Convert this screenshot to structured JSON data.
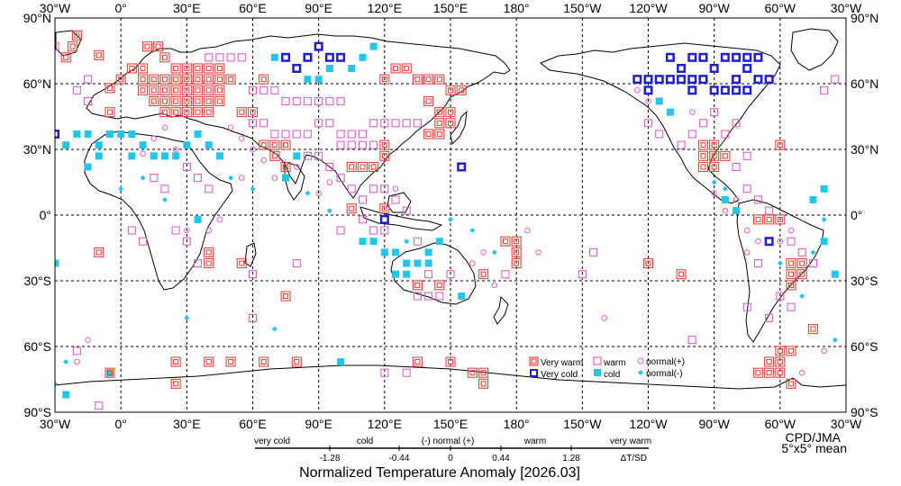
{
  "map": {
    "lon_labels_top": [
      "30°W",
      "0°",
      "30°E",
      "60°E",
      "90°E",
      "120°E",
      "150°E",
      "180°",
      "150°W",
      "120°W",
      "90°W",
      "60°W",
      "30°W"
    ],
    "lon_labels_bottom": [
      "30°W",
      "0°",
      "30°E",
      "60°E",
      "90°E",
      "120°E",
      "150°E",
      "180°",
      "150°W",
      "120°W",
      "90°W",
      "60°W",
      "30°W"
    ],
    "lat_labels": [
      "90°N",
      "60°N",
      "30°N",
      "0°",
      "30°S",
      "60°S",
      "90°S"
    ],
    "credit": "CPD/JMA",
    "grid_note": "5°x5° mean"
  },
  "legend": {
    "very_warm": "Very warm",
    "warm": "warm",
    "normal_plus": "normal(+)",
    "very_cold": "Very cold",
    "cold": "cold",
    "normal_minus": "normal(-)"
  },
  "scale": {
    "categories": [
      "very cold",
      "cold",
      "(-) normal (+)",
      "warm",
      "very warm"
    ],
    "ticks": [
      "-1.28",
      "-0.44",
      "0",
      "0.44",
      "1.28"
    ],
    "unit": "ΔT/SD",
    "title": "Normalized Temperature Anomaly [2026.03]"
  },
  "colors": {
    "very_warm": "#e8453c",
    "warm": "#e060c8",
    "very_cold": "#1f1fd0",
    "cold": "#22c6e8"
  },
  "stations": {
    "very_warm": [
      [
        -20,
        82
      ],
      [
        -22,
        77
      ],
      [
        -25,
        72
      ],
      [
        -10,
        73
      ],
      [
        -5,
        58
      ],
      [
        0,
        62
      ],
      [
        5,
        67
      ],
      [
        10,
        67
      ],
      [
        12,
        77
      ],
      [
        17,
        77
      ],
      [
        20,
        72
      ],
      [
        25,
        67
      ],
      [
        30,
        67
      ],
      [
        35,
        67
      ],
      [
        40,
        67
      ],
      [
        45,
        67
      ],
      [
        10,
        62
      ],
      [
        15,
        62
      ],
      [
        20,
        62
      ],
      [
        25,
        62
      ],
      [
        30,
        62
      ],
      [
        35,
        62
      ],
      [
        40,
        62
      ],
      [
        45,
        62
      ],
      [
        50,
        62
      ],
      [
        10,
        57
      ],
      [
        15,
        57
      ],
      [
        20,
        57
      ],
      [
        25,
        57
      ],
      [
        30,
        57
      ],
      [
        35,
        57
      ],
      [
        40,
        57
      ],
      [
        45,
        57
      ],
      [
        15,
        52
      ],
      [
        20,
        52
      ],
      [
        25,
        52
      ],
      [
        30,
        52
      ],
      [
        35,
        52
      ],
      [
        40,
        52
      ],
      [
        45,
        52
      ],
      [
        -5,
        47
      ],
      [
        20,
        47
      ],
      [
        25,
        47
      ],
      [
        30,
        47
      ],
      [
        35,
        47
      ],
      [
        40,
        47
      ],
      [
        55,
        47
      ],
      [
        60,
        47
      ],
      [
        65,
        62
      ],
      [
        120,
        62
      ],
      [
        125,
        67
      ],
      [
        130,
        67
      ],
      [
        135,
        62
      ],
      [
        140,
        62
      ],
      [
        145,
        62
      ],
      [
        150,
        57
      ],
      [
        155,
        57
      ],
      [
        140,
        52
      ],
      [
        145,
        47
      ],
      [
        150,
        47
      ],
      [
        145,
        42
      ],
      [
        150,
        42
      ],
      [
        140,
        37
      ],
      [
        145,
        37
      ],
      [
        65,
        32
      ],
      [
        70,
        32
      ],
      [
        75,
        32
      ],
      [
        70,
        27
      ],
      [
        75,
        22
      ],
      [
        105,
        22
      ],
      [
        110,
        22
      ],
      [
        115,
        22
      ],
      [
        120,
        27
      ],
      [
        120,
        32
      ],
      [
        105,
        3
      ],
      [
        120,
        3
      ],
      [
        -10,
        -17
      ],
      [
        40,
        -17
      ],
      [
        40,
        -22
      ],
      [
        55,
        -22
      ],
      [
        75,
        -37
      ],
      [
        175,
        -12
      ],
      [
        180,
        -12
      ],
      [
        180,
        -17
      ],
      [
        180,
        -22
      ],
      [
        165,
        -27
      ],
      [
        145,
        -32
      ],
      [
        135,
        -32
      ],
      [
        -120,
        -22
      ],
      [
        -105,
        -27
      ],
      [
        -95,
        32
      ],
      [
        -90,
        32
      ],
      [
        -95,
        27
      ],
      [
        -90,
        27
      ],
      [
        -85,
        27
      ],
      [
        -95,
        22
      ],
      [
        -90,
        22
      ],
      [
        -60,
        32
      ],
      [
        -70,
        -2
      ],
      [
        -65,
        -2
      ],
      [
        -60,
        -2
      ],
      [
        -55,
        -22
      ],
      [
        -50,
        -22
      ],
      [
        -55,
        -27
      ],
      [
        -50,
        -27
      ],
      [
        -55,
        -32
      ],
      [
        -45,
        -52
      ],
      [
        -60,
        -62
      ],
      [
        -55,
        -62
      ],
      [
        -60,
        -67
      ],
      [
        -65,
        -67
      ],
      [
        -60,
        -72
      ],
      [
        -65,
        -72
      ],
      [
        -70,
        -72
      ],
      [
        -55,
        -77
      ],
      [
        -5,
        -72
      ],
      [
        25,
        -67
      ],
      [
        25,
        -77
      ],
      [
        40,
        -67
      ],
      [
        50,
        -67
      ],
      [
        65,
        -67
      ],
      [
        80,
        -67
      ],
      [
        135,
        -67
      ],
      [
        150,
        -67
      ],
      [
        160,
        -72
      ],
      [
        165,
        -72
      ],
      [
        165,
        -77
      ]
    ],
    "warm": [
      [
        40,
        72
      ],
      [
        45,
        72
      ],
      [
        50,
        72
      ],
      [
        55,
        72
      ],
      [
        60,
        57
      ],
      [
        65,
        57
      ],
      [
        70,
        57
      ],
      [
        75,
        52
      ],
      [
        80,
        52
      ],
      [
        85,
        52
      ],
      [
        90,
        52
      ],
      [
        95,
        52
      ],
      [
        100,
        52
      ],
      [
        60,
        42
      ],
      [
        65,
        42
      ],
      [
        70,
        37
      ],
      [
        75,
        37
      ],
      [
        80,
        37
      ],
      [
        85,
        37
      ],
      [
        90,
        42
      ],
      [
        95,
        42
      ],
      [
        100,
        37
      ],
      [
        105,
        37
      ],
      [
        110,
        37
      ],
      [
        115,
        42
      ],
      [
        120,
        42
      ],
      [
        125,
        42
      ],
      [
        130,
        42
      ],
      [
        135,
        42
      ],
      [
        100,
        32
      ],
      [
        105,
        32
      ],
      [
        110,
        32
      ],
      [
        115,
        32
      ],
      [
        85,
        27
      ],
      [
        90,
        27
      ],
      [
        95,
        22
      ],
      [
        100,
        17
      ],
      [
        105,
        12
      ],
      [
        110,
        7
      ],
      [
        115,
        12
      ],
      [
        120,
        12
      ],
      [
        125,
        7
      ],
      [
        130,
        2
      ],
      [
        110,
        -2
      ],
      [
        115,
        -7
      ],
      [
        120,
        -7
      ],
      [
        135,
        -12
      ],
      [
        140,
        -27
      ],
      [
        150,
        -27
      ],
      [
        135,
        -37
      ],
      [
        140,
        -37
      ],
      [
        145,
        -37
      ],
      [
        -30,
        77
      ],
      [
        -35,
        62
      ],
      [
        -40,
        57
      ],
      [
        -15,
        62
      ],
      [
        -20,
        57
      ],
      [
        60,
        -47
      ],
      [
        100,
        -7
      ],
      [
        -150,
        -27
      ],
      [
        -145,
        -17
      ],
      [
        -90,
        47
      ],
      [
        -95,
        42
      ],
      [
        -100,
        37
      ],
      [
        -105,
        32
      ],
      [
        -115,
        37
      ],
      [
        -120,
        42
      ],
      [
        -80,
        42
      ],
      [
        -85,
        37
      ],
      [
        -75,
        27
      ],
      [
        -80,
        22
      ],
      [
        -75,
        12
      ],
      [
        -70,
        7
      ],
      [
        -65,
        2
      ],
      [
        -55,
        -12
      ],
      [
        -50,
        -17
      ],
      [
        -45,
        -22
      ],
      [
        -70,
        -22
      ],
      [
        -60,
        -37
      ],
      [
        -65,
        -47
      ],
      [
        -55,
        -42
      ],
      [
        15,
        17
      ],
      [
        20,
        12
      ],
      [
        30,
        22
      ],
      [
        35,
        17
      ],
      [
        40,
        12
      ],
      [
        5,
        -7
      ],
      [
        10,
        -12
      ],
      [
        25,
        -7
      ],
      [
        30,
        -12
      ],
      [
        35,
        -22
      ],
      [
        60,
        -27
      ],
      [
        -15,
        52
      ],
      [
        80,
        -22
      ],
      [
        175,
        -27
      ],
      [
        120,
        -72
      ],
      [
        130,
        -72
      ],
      [
        -100,
        -57
      ],
      [
        -75,
        -42
      ],
      [
        -20,
        -62
      ],
      [
        -10,
        -87
      ]
    ],
    "normal_plus": [
      [
        20,
        40
      ],
      [
        15,
        35
      ],
      [
        25,
        30
      ],
      [
        10,
        28
      ],
      [
        50,
        40
      ],
      [
        55,
        35
      ],
      [
        60,
        30
      ],
      [
        65,
        25
      ],
      [
        90,
        10
      ],
      [
        95,
        15
      ],
      [
        125,
        12
      ],
      [
        165,
        -17
      ],
      [
        160,
        -22
      ],
      [
        170,
        -32
      ],
      [
        -175,
        -7
      ],
      [
        -170,
        -17
      ],
      [
        -55,
        -7
      ],
      [
        -60,
        -12
      ],
      [
        -70,
        -12
      ],
      [
        -75,
        -17
      ],
      [
        -85,
        2
      ],
      [
        -90,
        10
      ],
      [
        -80,
        7
      ],
      [
        -75,
        -7
      ],
      [
        -40,
        -62
      ],
      [
        -50,
        -72
      ],
      [
        -15,
        -57
      ],
      [
        -20,
        -67
      ],
      [
        -140,
        -47
      ],
      [
        30,
        -7
      ],
      [
        40,
        -7
      ],
      [
        45,
        -2
      ],
      [
        55,
        17
      ],
      [
        70,
        17
      ],
      [
        80,
        22
      ],
      [
        -100,
        47
      ],
      [
        -110,
        47
      ],
      [
        -120,
        52
      ],
      [
        -125,
        57
      ]
    ],
    "very_cold": [
      [
        -30,
        37
      ],
      [
        75,
        72
      ],
      [
        80,
        67
      ],
      [
        85,
        72
      ],
      [
        90,
        77
      ],
      [
        95,
        72
      ],
      [
        100,
        72
      ],
      [
        120,
        -2
      ],
      [
        155,
        22
      ],
      [
        -110,
        72
      ],
      [
        -105,
        67
      ],
      [
        -100,
        72
      ],
      [
        -95,
        72
      ],
      [
        -90,
        67
      ],
      [
        -85,
        72
      ],
      [
        -80,
        72
      ],
      [
        -75,
        72
      ],
      [
        -70,
        72
      ],
      [
        -125,
        62
      ],
      [
        -120,
        62
      ],
      [
        -115,
        62
      ],
      [
        -110,
        62
      ],
      [
        -105,
        62
      ],
      [
        -100,
        62
      ],
      [
        -95,
        62
      ],
      [
        -90,
        57
      ],
      [
        -85,
        57
      ],
      [
        -80,
        57
      ],
      [
        -75,
        57
      ],
      [
        -70,
        62
      ],
      [
        -65,
        62
      ],
      [
        -80,
        62
      ],
      [
        -75,
        67
      ],
      [
        -120,
        57
      ],
      [
        -100,
        57
      ],
      [
        -65,
        -12
      ]
    ],
    "cold": [
      [
        -25,
        32
      ],
      [
        -20,
        37
      ],
      [
        -15,
        37
      ],
      [
        -10,
        32
      ],
      [
        -5,
        37
      ],
      [
        0,
        37
      ],
      [
        5,
        37
      ],
      [
        10,
        32
      ],
      [
        15,
        27
      ],
      [
        20,
        27
      ],
      [
        25,
        27
      ],
      [
        30,
        32
      ],
      [
        35,
        37
      ],
      [
        40,
        32
      ],
      [
        45,
        27
      ],
      [
        5,
        27
      ],
      [
        -10,
        27
      ],
      [
        -15,
        22
      ],
      [
        85,
        62
      ],
      [
        90,
        62
      ],
      [
        95,
        67
      ],
      [
        105,
        67
      ],
      [
        110,
        72
      ],
      [
        115,
        77
      ],
      [
        70,
        72
      ],
      [
        80,
        27
      ],
      [
        75,
        17
      ],
      [
        110,
        -12
      ],
      [
        115,
        -12
      ],
      [
        120,
        -17
      ],
      [
        125,
        -17
      ],
      [
        130,
        -22
      ],
      [
        135,
        -22
      ],
      [
        140,
        -22
      ],
      [
        125,
        -27
      ],
      [
        130,
        -27
      ],
      [
        140,
        -17
      ],
      [
        145,
        -12
      ],
      [
        155,
        -37
      ],
      [
        -5,
        -72
      ],
      [
        -25,
        -82
      ],
      [
        35,
        -2
      ],
      [
        100,
        -67
      ],
      [
        -40,
        12
      ],
      [
        -45,
        7
      ],
      [
        -40,
        -12
      ],
      [
        -35,
        -27
      ],
      [
        -30,
        -22
      ],
      [
        -115,
        52
      ],
      [
        -110,
        47
      ],
      [
        -85,
        7
      ],
      [
        -80,
        2
      ]
    ],
    "normal_minus": [
      [
        10,
        17
      ],
      [
        20,
        7
      ],
      [
        0,
        12
      ],
      [
        50,
        17
      ],
      [
        60,
        12
      ],
      [
        85,
        10
      ],
      [
        95,
        2
      ],
      [
        130,
        -12
      ],
      [
        150,
        -2
      ],
      [
        160,
        -7
      ],
      [
        170,
        -17
      ],
      [
        -90,
        15
      ],
      [
        -85,
        12
      ],
      [
        -40,
        -2
      ],
      [
        -45,
        -17
      ],
      [
        -60,
        -22
      ],
      [
        -50,
        -37
      ],
      [
        -30,
        -77
      ],
      [
        -25,
        -67
      ],
      [
        -35,
        -57
      ],
      [
        70,
        -52
      ],
      [
        30,
        -47
      ]
    ]
  }
}
